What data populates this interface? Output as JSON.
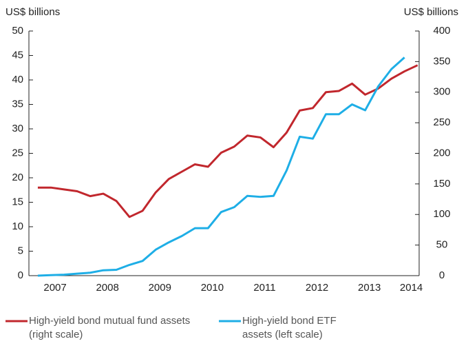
{
  "chart_data": {
    "type": "line",
    "y_label": "US$ billions",
    "y2_label": "US$ billions",
    "x": [
      2007.17,
      2007.42,
      2007.67,
      2007.92,
      2008.17,
      2008.42,
      2008.67,
      2008.92,
      2009.17,
      2009.42,
      2009.67,
      2009.92,
      2010.17,
      2010.42,
      2010.67,
      2010.92,
      2011.17,
      2011.42,
      2011.67,
      2011.92,
      2012.17,
      2012.42,
      2012.67,
      2012.92,
      2013.17,
      2013.42,
      2013.67,
      2013.92,
      2014.17,
      2014.42
    ],
    "series": [
      {
        "name": "High-yield bond mutual fund assets (right scale)",
        "color": "#c1272d",
        "axis": "y2",
        "values": [
          144,
          144,
          141,
          138,
          130,
          134,
          122,
          96,
          106,
          136,
          158,
          170,
          182,
          178,
          201,
          211,
          229,
          226,
          210,
          234,
          270,
          274,
          300,
          302,
          314,
          296,
          306,
          322,
          334,
          344
        ]
      },
      {
        "name": "High-yield bond ETF assets (left scale)",
        "color": "#1eaee6",
        "values": [
          0,
          0.1,
          0.2,
          0.4,
          0.6,
          1.1,
          1.2,
          2.2,
          3,
          5.3,
          6.8,
          8.1,
          9.7,
          9.7,
          13,
          14,
          16.3,
          16.1,
          16.3,
          21.5,
          28.4,
          28,
          33,
          33,
          35,
          33.8,
          38.7,
          42.2,
          44.6,
          null
        ]
      }
    ],
    "xlim": [
      2007,
      2014.45
    ],
    "xticks": [
      {
        "value": 2007.5,
        "label": "2007"
      },
      {
        "value": 2008.5,
        "label": "2008"
      },
      {
        "value": 2009.5,
        "label": "2009"
      },
      {
        "value": 2010.5,
        "label": "2010"
      },
      {
        "value": 2011.5,
        "label": "2011"
      },
      {
        "value": 2012.5,
        "label": "2012"
      },
      {
        "value": 2013.5,
        "label": "2013"
      },
      {
        "value": 2014.3,
        "label": "2014"
      }
    ],
    "ylim": [
      0,
      50
    ],
    "yticks": [
      0,
      5,
      10,
      15,
      20,
      25,
      30,
      35,
      40,
      45,
      50
    ],
    "y2lim": [
      0,
      400
    ],
    "y2ticks": [
      0,
      50,
      100,
      150,
      200,
      250,
      300,
      350,
      400
    ]
  }
}
